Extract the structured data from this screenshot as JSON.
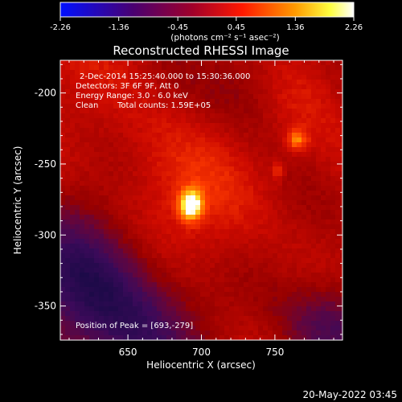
{
  "colorbar": {
    "ticks": [
      "-2.26",
      "-1.36",
      "-0.45",
      "0.45",
      "1.36",
      "2.26"
    ],
    "unit_label": "(photons cm⁻² s⁻¹ asec⁻²)",
    "range": [
      -2.26,
      2.26
    ]
  },
  "chart_data": {
    "type": "heatmap",
    "title": "Reconstructed RHESSI Image",
    "xlabel": "Heliocentric X (arcsec)",
    "ylabel": "Heliocentric Y (arcsec)",
    "xlim": [
      604,
      796
    ],
    "ylim": [
      -374,
      -177
    ],
    "xticks": [
      650,
      700,
      750
    ],
    "yticks": [
      -200,
      -250,
      -300,
      -350
    ],
    "colormap": "hot (blue-purple-red-yellow-white)",
    "sources": [
      {
        "x": 693,
        "y": -279,
        "peak": 2.26
      },
      {
        "x": 765,
        "y": -233,
        "peak": 1.3
      },
      {
        "x": 752,
        "y": -255,
        "peak": 0.9
      }
    ],
    "annotations": {
      "time": "2-Dec-2014 15:25:40.000 to 15:30:36.000",
      "detectors": "Detectors: 3F 6F 9F, Att 0",
      "energy": "Energy Range: 3.0 - 6.0 keV",
      "clean": "Clean",
      "counts": "Total counts: 1.59E+05",
      "peak": "Position of Peak = [693,-279]"
    }
  },
  "footer": {
    "timestamp": "20-May-2022 03:45"
  }
}
